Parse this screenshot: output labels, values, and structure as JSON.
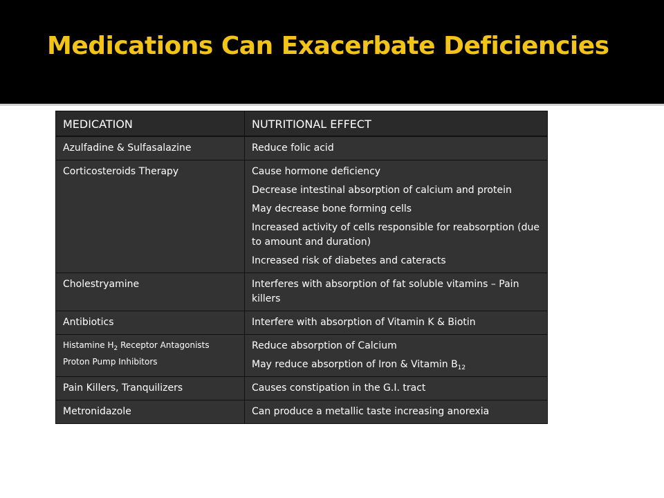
{
  "slide": {
    "title": "Medications Can Exacerbate Deficiencies"
  },
  "table": {
    "headers": [
      "MEDICATION",
      "NUTRITIONAL EFFECT"
    ],
    "rows": [
      {
        "medication": [
          "Azulfadine & Sulfasalazine"
        ],
        "effects": [
          "Reduce folic acid"
        ]
      },
      {
        "medication": [
          "Corticosteroids Therapy"
        ],
        "effects": [
          "Cause hormone deficiency",
          "Decrease intestinal absorption of calcium and protein",
          "May decrease bone forming cells",
          "Increased activity of cells responsible for reabsorption (due to amount and duration)",
          "Increased risk of diabetes and cateracts"
        ]
      },
      {
        "medication": [
          "Cholestryamine"
        ],
        "effects": [
          "Interferes with absorption of fat soluble vitamins – Pain killers"
        ]
      },
      {
        "medication": [
          "Antibiotics"
        ],
        "effects": [
          "Interfere with absorption of Vitamin K & Biotin"
        ]
      },
      {
        "medication_parts": {
          "pre": "Histamine H",
          "sub": "2",
          "post": " Receptor Antagonists"
        },
        "medication_extra": "Proton Pump Inhibitors",
        "effects_line1": "Reduce absorption of Calcium",
        "effects_line2": {
          "pre": "May reduce absorption of Iron & Vitamin B",
          "sub": "12"
        }
      },
      {
        "medication": [
          "Pain Killers, Tranquilizers"
        ],
        "effects": [
          "Causes constipation in the G.I. tract"
        ]
      },
      {
        "medication": [
          "Metronidazole"
        ],
        "effects": [
          "Can produce a metallic taste increasing anorexia"
        ]
      }
    ]
  }
}
